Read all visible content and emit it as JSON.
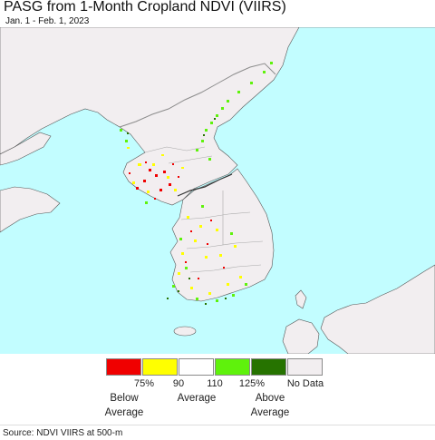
{
  "title": "PASG from 1-Month Cropland NDVI (VIIRS)",
  "subtitle": "Jan. 1 - Feb. 1, 2023",
  "colors": {
    "sea": "#c2fdff",
    "land": "#f2eef0",
    "border": "#8c8c8c"
  },
  "legend": {
    "items": [
      {
        "color": "#f00000",
        "label": "75%"
      },
      {
        "color": "#ffff00",
        "label": "90"
      },
      {
        "color": "#ffffff",
        "label": "110"
      },
      {
        "color": "#5ff20c",
        "label": "125%"
      },
      {
        "color": "#267300",
        "label": ""
      },
      {
        "color": "#f2eef0",
        "label": "No Data"
      }
    ],
    "below_label": "Below\nAverage",
    "average_label": "Average",
    "above_label": "Above\nAverage"
  },
  "source": "Source: NDVI VIIRS at 500-m"
}
